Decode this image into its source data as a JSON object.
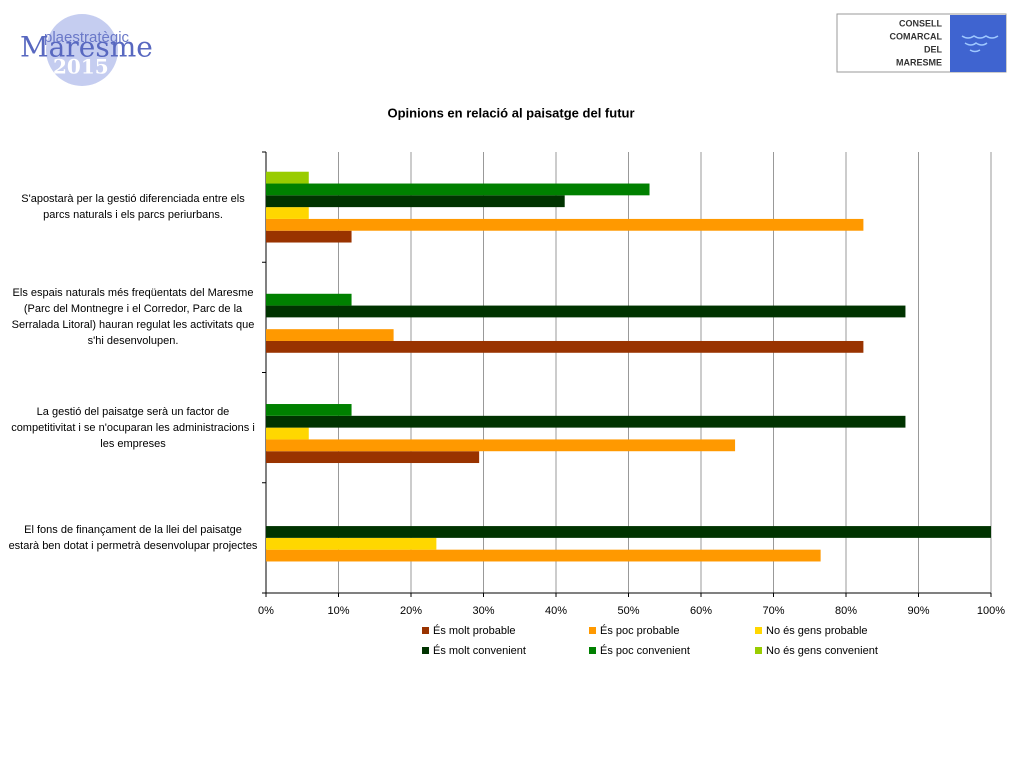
{
  "header": {
    "logo_left": {
      "line1": "plaestratègic",
      "line2": "Maresme",
      "line3": "2015"
    },
    "logo_right": {
      "lines": [
        "CONSELL",
        "COMARCAL",
        "DEL",
        "MARESME"
      ]
    }
  },
  "chart_data": {
    "type": "bar",
    "orientation": "horizontal",
    "title": "Opinions en relació al paisatge del futur",
    "categories": [
      "S'apostarà per la gestió diferenciada entre els parcs naturals i els parcs periurbans.",
      "Els espais naturals més freqüentats del Maresme (Parc del Montnegre i el Corredor, Parc de la Serralada Litoral) hauran regulat les activitats que s'hi desenvolupen.",
      "La gestió del paisatge serà un factor de competitivitat i se n'ocuparan les administracions i les empreses",
      "El fons de finançament de la llei del paisatge estarà ben dotat i permetrà desenvolupar projectes"
    ],
    "series": [
      {
        "name": "És molt probable",
        "color": "#993300",
        "values": [
          11.8,
          82.4,
          29.4,
          0
        ]
      },
      {
        "name": "És poc probable",
        "color": "#ff9900",
        "values": [
          82.4,
          17.6,
          64.7,
          76.5
        ]
      },
      {
        "name": "No és gens probable",
        "color": "#ffd700",
        "values": [
          5.9,
          0,
          5.9,
          23.5
        ]
      },
      {
        "name": "És molt convenient",
        "color": "#003300",
        "values": [
          41.2,
          88.2,
          88.2,
          100
        ]
      },
      {
        "name": "És poc convenient",
        "color": "#008000",
        "values": [
          52.9,
          11.8,
          11.8,
          0
        ]
      },
      {
        "name": "No és gens convenient",
        "color": "#99cc00",
        "values": [
          5.9,
          0,
          0,
          0
        ]
      }
    ],
    "xlim": [
      0,
      100
    ],
    "xticks": [
      {
        "value": 0,
        "label": "0%"
      },
      {
        "value": 10,
        "label": "10%"
      },
      {
        "value": 20,
        "label": "20%"
      },
      {
        "value": 30,
        "label": "30%"
      },
      {
        "value": 40,
        "label": "40%"
      },
      {
        "value": 50,
        "label": "50%"
      },
      {
        "value": 60,
        "label": "60%"
      },
      {
        "value": 70,
        "label": "70%"
      },
      {
        "value": 80,
        "label": "80%"
      },
      {
        "value": 90,
        "label": "90%"
      },
      {
        "value": 100,
        "label": "100%"
      }
    ],
    "grid": true,
    "legend": "bottom"
  }
}
